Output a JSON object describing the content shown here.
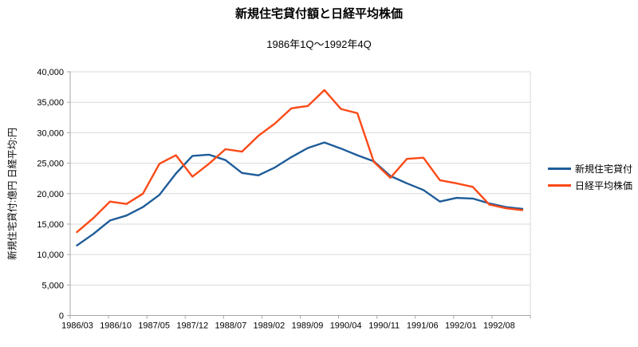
{
  "chart_data": {
    "type": "line",
    "title": "新規住宅貸付額と日経平均株価",
    "subtitle": "1986年1Q～1992年4Q",
    "ylabel": "新規住宅貸付:億円 日経平均:円",
    "xlabel": "",
    "ylim": [
      0,
      40000
    ],
    "ytick_step": 5000,
    "grid": "horizontal",
    "legend_position": "right",
    "y_tick_labels": [
      "0",
      "5,000",
      "10,000",
      "15,000",
      "20,000",
      "25,000",
      "30,000",
      "35,000",
      "40,000"
    ],
    "x_tick_labels": [
      "1986/03",
      "1986/10",
      "1987/05",
      "1987/12",
      "1988/07",
      "1989/02",
      "1989/09",
      "1990/04",
      "1990/11",
      "1991/06",
      "1992/01",
      "1992/08"
    ],
    "categories": [
      "1986/03",
      "1986/06",
      "1986/09",
      "1986/12",
      "1987/03",
      "1987/06",
      "1987/09",
      "1987/12",
      "1988/03",
      "1988/06",
      "1988/09",
      "1988/12",
      "1989/03",
      "1989/06",
      "1989/09",
      "1989/12",
      "1990/03",
      "1990/06",
      "1990/09",
      "1990/12",
      "1991/03",
      "1991/06",
      "1991/09",
      "1991/12",
      "1992/03",
      "1992/06",
      "1992/09",
      "1992/12"
    ],
    "series": [
      {
        "name": "新規住宅貸付",
        "color": "#1E5C99",
        "values": [
          11500,
          13400,
          15600,
          16400,
          17800,
          19800,
          23300,
          26200,
          26400,
          25500,
          23400,
          23000,
          24300,
          26000,
          27500,
          28400,
          27400,
          26300,
          25300,
          22900,
          21700,
          20600,
          18700,
          19300,
          19200,
          18400,
          17800,
          17500
        ]
      },
      {
        "name": "日経平均株価",
        "color": "#FB4A17",
        "values": [
          13700,
          16000,
          18700,
          18300,
          20000,
          24900,
          26300,
          22800,
          24900,
          27300,
          26900,
          29500,
          31500,
          34000,
          34400,
          37000,
          33900,
          33200,
          25200,
          22600,
          25700,
          25900,
          22200,
          21700,
          21100,
          18200,
          17600,
          17300
        ]
      }
    ],
    "axis_color": "#A6A6A6",
    "gridline_color": "#D9D9D9",
    "text_color": "#000000"
  }
}
